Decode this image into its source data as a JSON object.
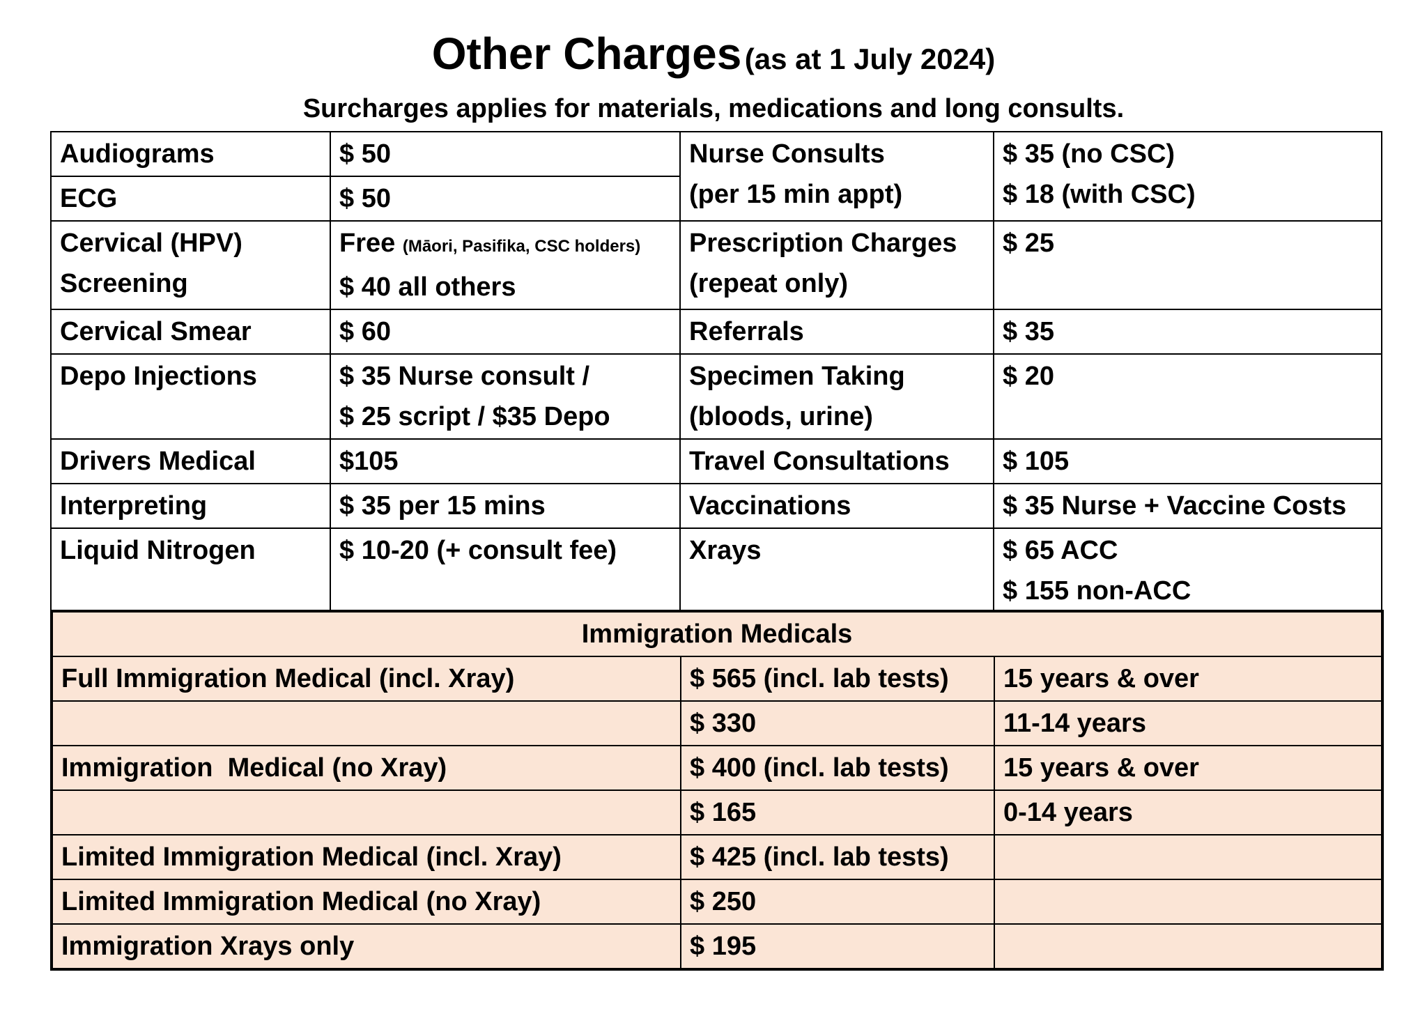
{
  "title": {
    "main": "Other Charges",
    "date": "(as at 1 July 2024)"
  },
  "subtitle": "Surcharges applies for materials, medications and long consults.",
  "charges": {
    "audiograms": {
      "label": "Audiograms",
      "price": "$ 50"
    },
    "ecg": {
      "label": "ECG",
      "price": "$ 50"
    },
    "nurse_consults": {
      "label": [
        "Nurse Consults",
        "(per 15 min appt)"
      ],
      "price": [
        "$ 35 (no CSC)",
        "$ 18 (with CSC)"
      ]
    },
    "cervical_hpv": {
      "label": [
        "Cervical (HPV)",
        "Screening"
      ],
      "price_free": "Free",
      "price_free_note": "(Māori, Pasifika, CSC holders)",
      "price_others": "$ 40 all others"
    },
    "prescription": {
      "label": [
        "Prescription Charges",
        "(repeat only)"
      ],
      "price": "$ 25"
    },
    "cervical_smear": {
      "label": "Cervical Smear",
      "price": "$ 60"
    },
    "referrals": {
      "label": "Referrals",
      "price": "$ 35"
    },
    "depo": {
      "label": "Depo Injections",
      "price": [
        "$ 35 Nurse consult /",
        "$ 25 script / $35 Depo"
      ]
    },
    "specimen": {
      "label": [
        "Specimen Taking",
        "(bloods, urine)"
      ],
      "price": "$ 20"
    },
    "drivers_medical": {
      "label": "Drivers Medical",
      "price": "$105"
    },
    "travel": {
      "label": "Travel Consultations",
      "price": "$ 105"
    },
    "interpreting": {
      "label": "Interpreting",
      "price": "$ 35 per 15 mins"
    },
    "vaccinations": {
      "label": "Vaccinations",
      "price": "$ 35 Nurse + Vaccine Costs"
    },
    "liquid_nitrogen": {
      "label": "Liquid Nitrogen",
      "price": "$ 10-20 (+ consult fee)"
    },
    "xrays": {
      "label": "Xrays",
      "price": [
        "$ 65 ACC",
        "$ 155 non-ACC"
      ]
    }
  },
  "immigration": {
    "heading": "Immigration Medicals",
    "rows": [
      {
        "service": "Full Immigration Medical (incl. Xray)",
        "price": "$ 565 (incl. lab tests)",
        "age": "15 years & over"
      },
      {
        "service": "",
        "price": "$ 330",
        "age": "11-14 years"
      },
      {
        "service": "Immigration  Medical (no Xray)",
        "price": "$ 400 (incl. lab tests)",
        "age": "15 years & over"
      },
      {
        "service": "",
        "price": "$ 165",
        "age": "0-14 years"
      },
      {
        "service": "Limited Immigration Medical (incl. Xray)",
        "price": "$ 425 (incl. lab tests)",
        "age": ""
      },
      {
        "service": "Limited Immigration Medical (no Xray)",
        "price": "$ 250",
        "age": ""
      },
      {
        "service": "Immigration Xrays only",
        "price": "$ 195",
        "age": ""
      }
    ]
  },
  "colors": {
    "immigration_background": "#fbe5d6",
    "border": "#000000"
  }
}
